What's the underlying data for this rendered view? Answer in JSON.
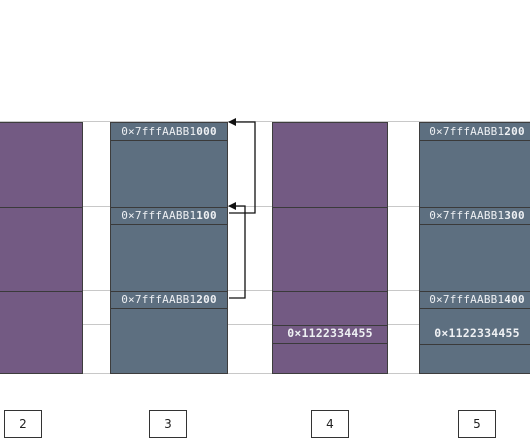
{
  "columns": [
    {
      "id": "2",
      "cells": []
    },
    {
      "id": "3",
      "cells": [
        {
          "prefix": "0×7fffAABB1",
          "suffix": "000"
        },
        {
          "prefix": "0×7fffAABB1",
          "suffix": "100"
        },
        {
          "prefix": "0×7fffAABB1",
          "suffix": "200"
        }
      ]
    },
    {
      "id": "4",
      "cells": [
        {
          "value": "0×1122334455"
        }
      ]
    },
    {
      "id": "5",
      "cells": [
        {
          "prefix": "0×7fffAABB1",
          "suffix": "200"
        },
        {
          "prefix": "0×7fffAABB1",
          "suffix": "300"
        },
        {
          "prefix": "0×7fffAABB1",
          "suffix": "400"
        },
        {
          "value": "0×1122334455"
        }
      ]
    }
  ],
  "colors": {
    "purple": "#735a83",
    "slate": "#5d6f80"
  }
}
